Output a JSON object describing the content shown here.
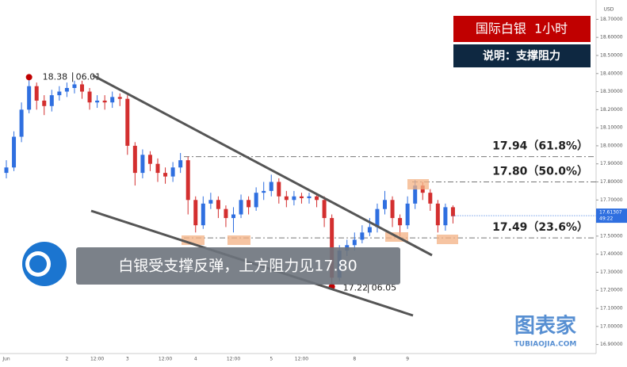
{
  "chart_data": {
    "type": "candlestick",
    "title": "国际白银  1小时",
    "subtitle": "说明：支撑阻力",
    "annotation": "白银受支撑反弹，上方阻力见17.80",
    "currency": "USD",
    "peak": {
      "price": 18.38,
      "date": "06.01"
    },
    "trough": {
      "price": 17.22,
      "date": "06.05"
    },
    "levels": [
      {
        "value": 17.94,
        "label": "17.94（61.8%）"
      },
      {
        "value": 17.8,
        "label": "17.80（50.0%）"
      },
      {
        "value": 17.49,
        "label": "17.49（23.6%）"
      }
    ],
    "current_price": 17.61307,
    "countdown": "49:22",
    "watermark": "图表家",
    "watermark_url": "TUBIAOJIA.COM",
    "up_color": "#2f6fe0",
    "down_color": "#d32f2f",
    "ylim": [
      16.85,
      18.75
    ],
    "yticks": [
      {
        "value": 16.9,
        "label": "16.90000"
      },
      {
        "value": 17.0,
        "label": "17.00000"
      },
      {
        "value": 17.1,
        "label": "17.10000"
      },
      {
        "value": 17.2,
        "label": "17.20000"
      },
      {
        "value": 17.3,
        "label": "17.30000"
      },
      {
        "value": 17.4,
        "label": "17.40000"
      },
      {
        "value": 17.5,
        "label": "17.50000"
      },
      {
        "value": 17.6,
        "label": "17.60000"
      },
      {
        "value": 17.7,
        "label": "17.70000"
      },
      {
        "value": 17.8,
        "label": "17.80000"
      },
      {
        "value": 17.9,
        "label": "17.90000"
      },
      {
        "value": 18.0,
        "label": "18.00000"
      },
      {
        "value": 18.1,
        "label": "18.10000"
      },
      {
        "value": 18.2,
        "label": "18.20000"
      },
      {
        "value": 18.3,
        "label": "18.30000"
      },
      {
        "value": 18.4,
        "label": "18.40000"
      },
      {
        "value": 18.5,
        "label": "18.50000"
      },
      {
        "value": 18.6,
        "label": "18.60000"
      },
      {
        "value": 18.7,
        "label": "18.70000"
      }
    ],
    "categories": [
      "Jun",
      null,
      null,
      null,
      null,
      null,
      null,
      null,
      "2",
      null,
      null,
      null,
      "12:00",
      null,
      null,
      null,
      "3",
      null,
      null,
      null,
      null,
      "12:00",
      null,
      null,
      null,
      "4",
      null,
      null,
      null,
      null,
      "12:00",
      null,
      null,
      null,
      null,
      "5",
      null,
      null,
      null,
      "12:00",
      null,
      null,
      null,
      null,
      null,
      null,
      "8",
      null,
      null,
      null,
      null,
      null,
      null,
      "9",
      null,
      null,
      null,
      null,
      null,
      null
    ],
    "candles": [
      [
        17.85,
        17.92,
        17.82,
        17.88
      ],
      [
        17.88,
        18.08,
        17.86,
        18.05
      ],
      [
        18.05,
        18.24,
        18.02,
        18.2
      ],
      [
        18.2,
        18.38,
        18.18,
        18.33
      ],
      [
        18.33,
        18.35,
        18.2,
        18.25
      ],
      [
        18.25,
        18.28,
        18.17,
        18.22
      ],
      [
        18.22,
        18.31,
        18.19,
        18.28
      ],
      [
        18.28,
        18.33,
        18.25,
        18.3
      ],
      [
        18.3,
        18.35,
        18.27,
        18.32
      ],
      [
        18.32,
        18.36,
        18.29,
        18.34
      ],
      [
        18.34,
        18.36,
        18.26,
        18.3
      ],
      [
        18.3,
        18.32,
        18.2,
        18.24
      ],
      [
        18.24,
        18.28,
        18.21,
        18.25
      ],
      [
        18.25,
        18.28,
        18.2,
        18.24
      ],
      [
        18.24,
        18.3,
        18.21,
        18.27
      ],
      [
        18.27,
        18.29,
        18.22,
        18.26
      ],
      [
        18.26,
        18.28,
        17.95,
        18.0
      ],
      [
        18.0,
        18.02,
        17.78,
        17.85
      ],
      [
        17.85,
        17.98,
        17.82,
        17.95
      ],
      [
        17.95,
        17.97,
        17.86,
        17.9
      ],
      [
        17.9,
        17.93,
        17.8,
        17.85
      ],
      [
        17.85,
        17.88,
        17.79,
        17.83
      ],
      [
        17.83,
        17.91,
        17.8,
        17.88
      ],
      [
        17.88,
        17.96,
        17.85,
        17.92
      ],
      [
        17.92,
        17.94,
        17.62,
        17.7
      ],
      [
        17.7,
        17.72,
        17.52,
        17.56
      ],
      [
        17.56,
        17.72,
        17.54,
        17.68
      ],
      [
        17.68,
        17.74,
        17.65,
        17.7
      ],
      [
        17.7,
        17.72,
        17.6,
        17.65
      ],
      [
        17.65,
        17.67,
        17.55,
        17.6
      ],
      [
        17.6,
        17.66,
        17.52,
        17.62
      ],
      [
        17.62,
        17.73,
        17.6,
        17.7
      ],
      [
        17.7,
        17.72,
        17.62,
        17.66
      ],
      [
        17.66,
        17.77,
        17.64,
        17.74
      ],
      [
        17.74,
        17.8,
        17.7,
        17.75
      ],
      [
        17.75,
        17.84,
        17.72,
        17.8
      ],
      [
        17.8,
        17.82,
        17.68,
        17.72
      ],
      [
        17.72,
        17.75,
        17.66,
        17.7
      ],
      [
        17.7,
        17.75,
        17.67,
        17.72
      ],
      [
        17.72,
        17.74,
        17.68,
        17.71
      ],
      [
        17.71,
        17.74,
        17.68,
        17.72
      ],
      [
        17.72,
        17.73,
        17.66,
        17.7
      ],
      [
        17.7,
        17.72,
        17.55,
        17.6
      ],
      [
        17.6,
        17.62,
        17.22,
        17.27
      ],
      [
        17.27,
        17.45,
        17.25,
        17.42
      ],
      [
        17.42,
        17.48,
        17.39,
        17.45
      ],
      [
        17.45,
        17.52,
        17.42,
        17.48
      ],
      [
        17.48,
        17.56,
        17.46,
        17.52
      ],
      [
        17.52,
        17.6,
        17.5,
        17.55
      ],
      [
        17.55,
        17.68,
        17.52,
        17.65
      ],
      [
        17.65,
        17.75,
        17.62,
        17.7
      ],
      [
        17.7,
        17.72,
        17.55,
        17.6
      ],
      [
        17.6,
        17.62,
        17.5,
        17.56
      ],
      [
        17.56,
        17.72,
        17.54,
        17.68
      ],
      [
        17.68,
        17.81,
        17.65,
        17.78
      ],
      [
        17.78,
        17.8,
        17.7,
        17.74
      ],
      [
        17.74,
        17.76,
        17.64,
        17.68
      ],
      [
        17.68,
        17.7,
        17.52,
        17.56
      ],
      [
        17.56,
        17.68,
        17.53,
        17.66
      ],
      [
        17.66,
        17.67,
        17.57,
        17.61
      ]
    ]
  }
}
